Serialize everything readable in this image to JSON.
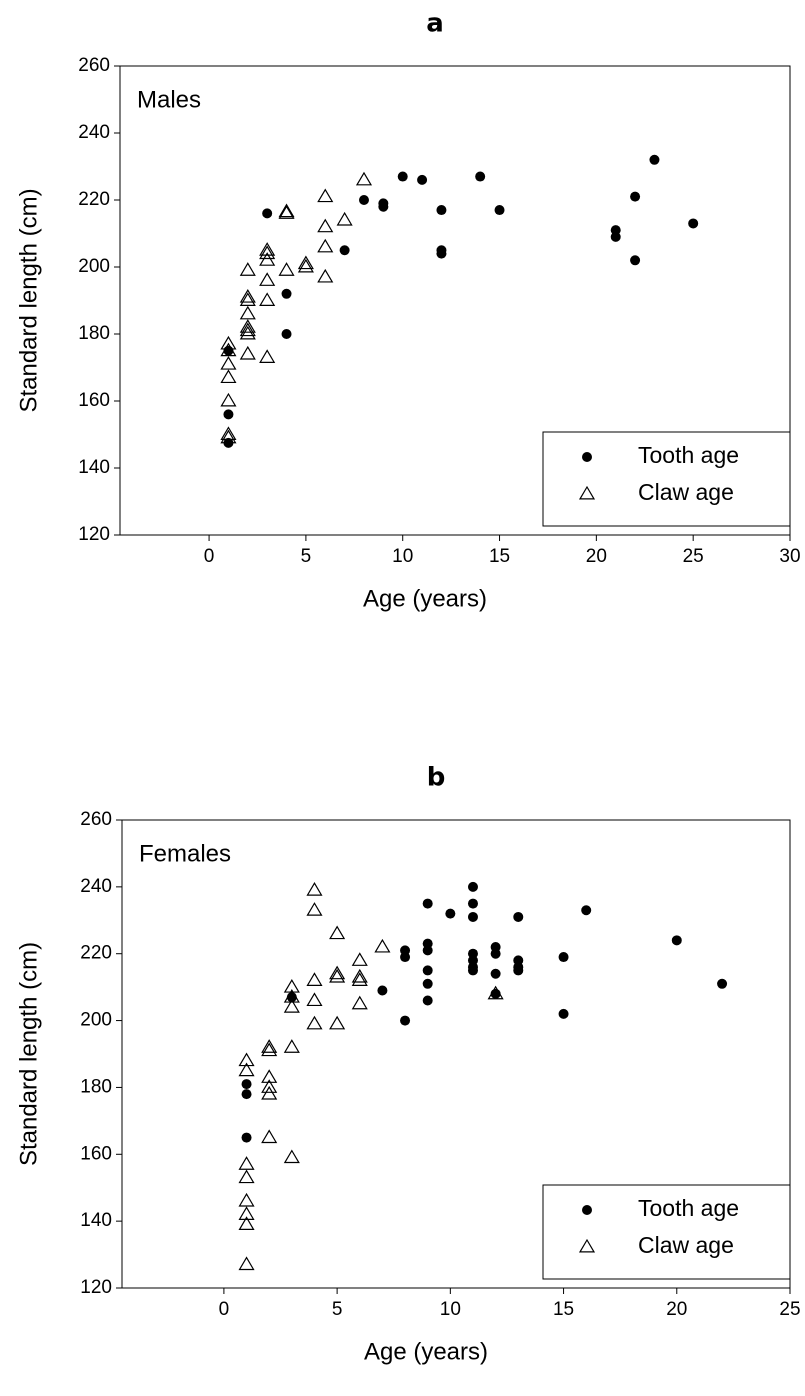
{
  "chart_data": [
    {
      "type": "scatter",
      "title": "a",
      "annotation": "Males",
      "x_label": "Age (years)",
      "y_label": "Standard length (cm)",
      "xlim": [
        -4.6,
        30
      ],
      "ylim": [
        120,
        260
      ],
      "xticks": [
        0,
        5,
        10,
        15,
        20,
        25,
        30
      ],
      "yticks": [
        120,
        140,
        160,
        180,
        200,
        220,
        240,
        260
      ],
      "legend": "lower right",
      "series": [
        {
          "name": "Tooth age",
          "marker": "circle",
          "color": "#000000",
          "x": [
            1,
            1,
            1,
            3,
            4,
            4,
            7,
            8,
            9,
            9,
            10,
            11,
            12,
            12,
            12,
            14,
            15,
            21,
            21,
            22,
            22,
            23,
            25
          ],
          "values": [
            175,
            156,
            147.5,
            216,
            192,
            180,
            205,
            220,
            219,
            218,
            227,
            226,
            217,
            205,
            204,
            227,
            217,
            211,
            209,
            221,
            202,
            232,
            213
          ]
        },
        {
          "name": "Claw age",
          "marker": "triangle",
          "color": "#000000",
          "x": [
            1,
            1,
            1,
            1,
            1,
            1,
            1,
            2,
            2,
            2,
            2,
            2,
            2,
            2,
            2,
            3,
            3,
            3,
            3,
            3,
            3,
            4,
            4,
            4,
            5,
            5,
            6,
            6,
            6,
            6,
            7,
            8
          ],
          "values": [
            177,
            175,
            171,
            167,
            160,
            150,
            149,
            199,
            191,
            190,
            186,
            182,
            181,
            180,
            174,
            205,
            204,
            202,
            196,
            190,
            173,
            216,
            216.5,
            199,
            201,
            200,
            221,
            212,
            206,
            197,
            214,
            226
          ]
        }
      ]
    },
    {
      "type": "scatter",
      "title": "b",
      "annotation": "Females",
      "x_label": "Age (years)",
      "y_label": "Standard length (cm)",
      "xlim": [
        -4.5,
        25
      ],
      "ylim": [
        120,
        260
      ],
      "xticks": [
        0,
        5,
        10,
        15,
        20,
        25
      ],
      "yticks": [
        120,
        140,
        160,
        180,
        200,
        220,
        240,
        260
      ],
      "legend": "lower right",
      "series": [
        {
          "name": "Tooth age",
          "marker": "circle",
          "color": "#000000",
          "x": [
            1,
            1,
            1,
            3,
            7,
            8,
            8,
            8,
            9,
            9,
            9,
            9,
            9,
            9,
            10,
            11,
            11,
            11,
            11,
            11,
            11,
            11,
            12,
            12,
            12,
            12,
            13,
            13,
            13,
            13,
            15,
            15,
            16,
            20,
            22
          ],
          "values": [
            181,
            178,
            165,
            207,
            209,
            221,
            219,
            200,
            235,
            223,
            221,
            215,
            211,
            206,
            232,
            240,
            235,
            231,
            220,
            218,
            216,
            215,
            222,
            220,
            214,
            208,
            231,
            218,
            216,
            215,
            219,
            202,
            233,
            224,
            211
          ]
        },
        {
          "name": "Claw age",
          "marker": "triangle",
          "color": "#000000",
          "x": [
            1,
            1,
            1,
            1,
            1,
            1,
            1,
            1,
            2,
            2,
            2,
            2,
            2,
            2,
            3,
            3,
            3,
            3,
            3,
            4,
            4,
            4,
            4,
            4,
            5,
            5,
            5,
            5,
            6,
            6,
            6,
            6,
            7,
            12
          ],
          "values": [
            188,
            185,
            157,
            153,
            146,
            142,
            139,
            127,
            192,
            191,
            183,
            180,
            178,
            165,
            210,
            207,
            204,
            192,
            159,
            239,
            233,
            212,
            206,
            199,
            226,
            214,
            213,
            199,
            218,
            213,
            212,
            205,
            222,
            208
          ]
        }
      ]
    }
  ]
}
